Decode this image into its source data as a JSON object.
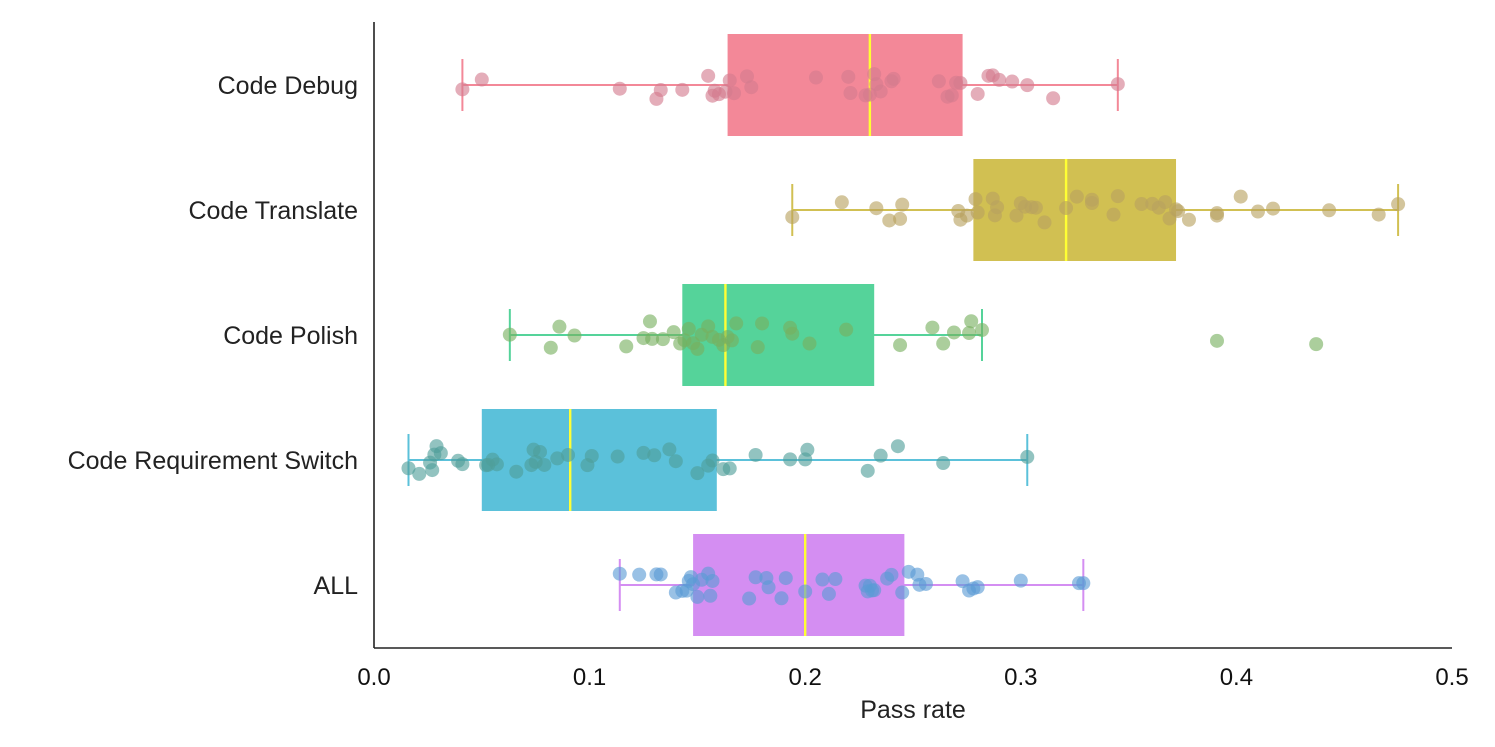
{
  "chart_data": {
    "type": "boxplot",
    "title": "",
    "xlabel": "Pass rate",
    "ylabel": "",
    "xlim": [
      0.0,
      0.5
    ],
    "x_ticks": [
      0.0,
      0.1,
      0.2,
      0.3,
      0.4,
      0.5
    ],
    "x_tick_labels": [
      "0.0",
      "0.1",
      "0.2",
      "0.3",
      "0.4",
      "0.5"
    ],
    "orientation": "horizontal",
    "grid": false,
    "legend": "none",
    "categories": [
      {
        "name": "Code Debug",
        "box_color": "#f38898",
        "point_color": "#d47a8e",
        "whisker_low": 0.041,
        "q1": 0.164,
        "median": 0.23,
        "q3": 0.273,
        "whisker_high": 0.345,
        "points": [
          0.041,
          0.05,
          0.114,
          0.131,
          0.133,
          0.143,
          0.155,
          0.157,
          0.158,
          0.16,
          0.163,
          0.165,
          0.167,
          0.173,
          0.175,
          0.205,
          0.22,
          0.221,
          0.228,
          0.23,
          0.232,
          0.233,
          0.235,
          0.24,
          0.241,
          0.262,
          0.266,
          0.268,
          0.27,
          0.272,
          0.28,
          0.285,
          0.287,
          0.29,
          0.296,
          0.303,
          0.315,
          0.345
        ]
      },
      {
        "name": "Code Translate",
        "box_color": "#d1c052",
        "point_color": "#b8a15f",
        "whisker_low": 0.194,
        "q1": 0.278,
        "median": 0.321,
        "q3": 0.372,
        "whisker_high": 0.475,
        "points": [
          0.194,
          0.217,
          0.233,
          0.239,
          0.244,
          0.245,
          0.271,
          0.272,
          0.275,
          0.279,
          0.28,
          0.287,
          0.288,
          0.289,
          0.298,
          0.3,
          0.302,
          0.305,
          0.307,
          0.311,
          0.321,
          0.326,
          0.333,
          0.333,
          0.343,
          0.345,
          0.356,
          0.361,
          0.364,
          0.367,
          0.369,
          0.372,
          0.373,
          0.378,
          0.391,
          0.391,
          0.402,
          0.41,
          0.417,
          0.443,
          0.466,
          0.475
        ]
      },
      {
        "name": "Code Polish",
        "box_color": "#55d39a",
        "point_color": "#77b05f",
        "whisker_low": 0.063,
        "q1": 0.143,
        "median": 0.163,
        "q3": 0.232,
        "whisker_high": 0.282,
        "points": [
          0.063,
          0.082,
          0.086,
          0.093,
          0.117,
          0.125,
          0.128,
          0.129,
          0.134,
          0.139,
          0.142,
          0.144,
          0.146,
          0.148,
          0.15,
          0.152,
          0.155,
          0.157,
          0.16,
          0.162,
          0.164,
          0.166,
          0.168,
          0.178,
          0.18,
          0.193,
          0.194,
          0.202,
          0.219,
          0.244,
          0.259,
          0.264,
          0.269,
          0.276,
          0.277,
          0.282,
          0.391,
          0.437
        ]
      },
      {
        "name": "Code Requirement Switch",
        "box_color": "#5bc1da",
        "point_color": "#4f9e9a",
        "whisker_low": 0.016,
        "q1": 0.05,
        "median": 0.091,
        "q3": 0.159,
        "whisker_high": 0.303,
        "points": [
          0.016,
          0.021,
          0.026,
          0.027,
          0.028,
          0.029,
          0.031,
          0.039,
          0.041,
          0.052,
          0.053,
          0.055,
          0.057,
          0.066,
          0.073,
          0.074,
          0.075,
          0.077,
          0.079,
          0.085,
          0.09,
          0.099,
          0.101,
          0.113,
          0.125,
          0.13,
          0.137,
          0.14,
          0.15,
          0.155,
          0.157,
          0.162,
          0.165,
          0.177,
          0.193,
          0.2,
          0.201,
          0.229,
          0.235,
          0.243,
          0.264,
          0.303
        ]
      },
      {
        "name": "ALL",
        "box_color": "#d48ef2",
        "point_color": "#5b9bd5",
        "whisker_low": 0.114,
        "q1": 0.148,
        "median": 0.2,
        "q3": 0.246,
        "whisker_high": 0.329,
        "points": [
          0.114,
          0.123,
          0.131,
          0.133,
          0.14,
          0.143,
          0.145,
          0.146,
          0.147,
          0.148,
          0.15,
          0.152,
          0.155,
          0.156,
          0.157,
          0.174,
          0.177,
          0.182,
          0.183,
          0.189,
          0.191,
          0.2,
          0.208,
          0.211,
          0.214,
          0.228,
          0.229,
          0.23,
          0.231,
          0.232,
          0.238,
          0.24,
          0.245,
          0.248,
          0.252,
          0.253,
          0.256,
          0.273,
          0.276,
          0.278,
          0.28,
          0.3,
          0.327,
          0.329
        ]
      }
    ]
  }
}
